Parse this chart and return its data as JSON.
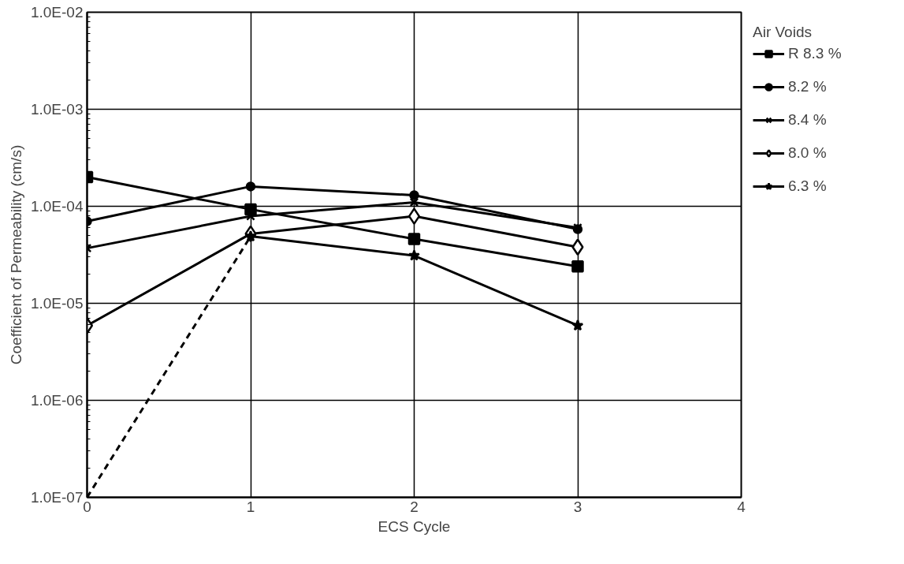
{
  "chart_data": {
    "type": "line",
    "xlabel": "ECS Cycle",
    "ylabel": "Coefficient of Permeability (cm/s)",
    "legend_title": "Air Voids",
    "x": [
      0,
      1,
      2,
      3
    ],
    "log": "y",
    "grid": true,
    "legend": "right",
    "xlim": [
      0,
      4
    ],
    "xticks": [
      0,
      1,
      2,
      3,
      4
    ],
    "ylim": [
      1e-07,
      0.01
    ],
    "yticks": [
      {
        "value": 1e-07,
        "label": "1.0E-07"
      },
      {
        "value": 1e-06,
        "label": "1.0E-06"
      },
      {
        "value": 1e-05,
        "label": "1.0E-05"
      },
      {
        "value": 0.0001,
        "label": "1.0E-04"
      },
      {
        "value": 0.001,
        "label": "1.0E-03"
      },
      {
        "value": 0.01,
        "label": "1.0E-02"
      }
    ],
    "series": [
      {
        "name": "R 8.3 %",
        "color": "#000000",
        "marker": "square",
        "values": [
          0.0002,
          9.3e-05,
          4.6e-05,
          2.4e-05
        ]
      },
      {
        "name": "8.2 %",
        "color": "#000000",
        "marker": "circle",
        "values": [
          7e-05,
          0.00016,
          0.00013,
          5.8e-05
        ]
      },
      {
        "name": "8.4 %",
        "color": "#000000",
        "marker": "cross",
        "values": [
          3.7e-05,
          7.9e-05,
          0.00011,
          6e-05
        ]
      },
      {
        "name": "8.0 %",
        "color": "#000000",
        "marker": "diamond",
        "values": [
          5.9e-06,
          5.2e-05,
          7.9e-05,
          3.8e-05
        ]
      },
      {
        "name": "6.3 %",
        "color": "#000000",
        "marker": "star",
        "x": [
          1,
          2,
          3
        ],
        "values": [
          4.9e-05,
          3.1e-05,
          5.9e-06
        ]
      },
      {
        "color": "#000000",
        "marker": "none",
        "line_style": "dashed",
        "x": [
          0,
          1
        ],
        "values": [
          1e-07,
          4.9e-05
        ]
      }
    ]
  }
}
